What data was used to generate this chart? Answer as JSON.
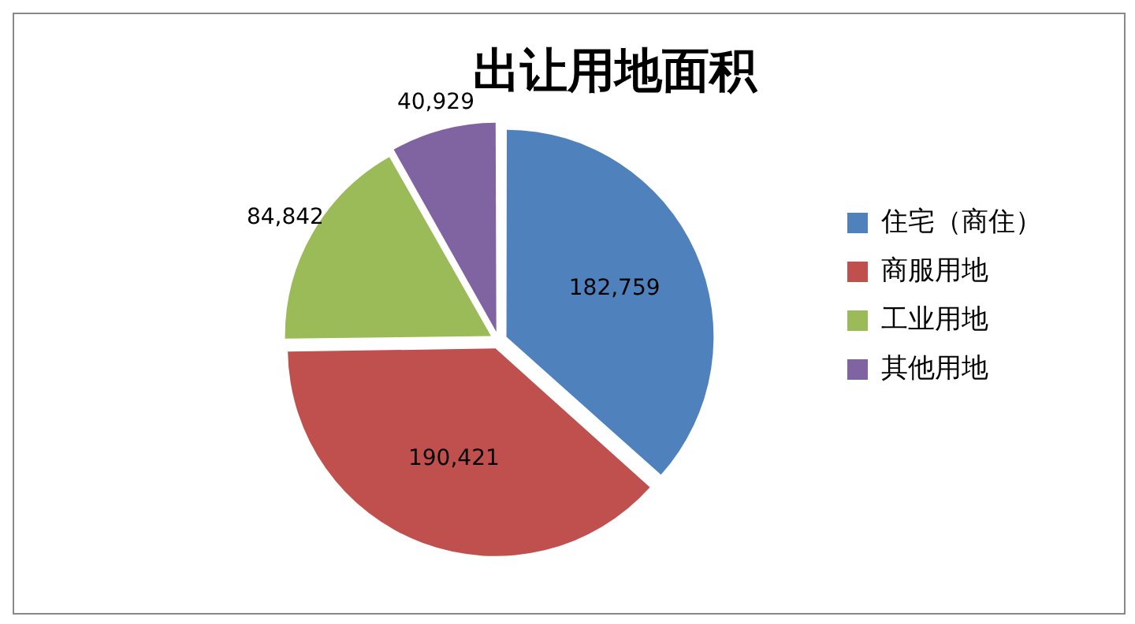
{
  "chart_data": {
    "type": "pie",
    "title": "出让用地面积",
    "categories": [
      "住宅（商住）",
      "商服用地",
      "工业用地",
      "其他用地"
    ],
    "values": [
      182759,
      190421,
      84842,
      40929
    ],
    "colors": [
      "#4f81bd",
      "#c0504d",
      "#9bbb59",
      "#8064a2"
    ],
    "value_labels": [
      "182,759",
      "190,421",
      "84,842",
      "40,929"
    ],
    "legend": "right"
  }
}
